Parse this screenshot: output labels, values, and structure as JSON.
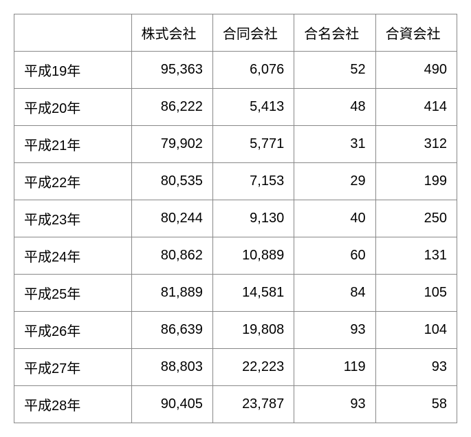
{
  "table": {
    "type": "table",
    "background_color": "#ffffff",
    "border_color": "#888888",
    "text_color": "#000000",
    "font_size_pt": 15,
    "columns": [
      "株式会社",
      "合同会社",
      "合名会社",
      "合資会社"
    ],
    "row_headers": [
      "平成19年",
      "平成20年",
      "平成21年",
      "平成22年",
      "平成23年",
      "平成24年",
      "平成25年",
      "平成26年",
      "平成27年",
      "平成28年"
    ],
    "rows": [
      [
        "95,363",
        "6,076",
        "52",
        "490"
      ],
      [
        "86,222",
        "5,413",
        "48",
        "414"
      ],
      [
        "79,902",
        "5,771",
        "31",
        "312"
      ],
      [
        "80,535",
        "7,153",
        "29",
        "199"
      ],
      [
        "80,244",
        "9,130",
        "40",
        "250"
      ],
      [
        "80,862",
        "10,889",
        "60",
        "131"
      ],
      [
        "81,889",
        "14,581",
        "84",
        "105"
      ],
      [
        "86,639",
        "19,808",
        "93",
        "104"
      ],
      [
        "88,803",
        "22,223",
        "119",
        "93"
      ],
      [
        "90,405",
        "23,787",
        "93",
        "58"
      ]
    ],
    "col_alignment": [
      "right",
      "right",
      "right",
      "right"
    ],
    "row_header_alignment": "left"
  }
}
